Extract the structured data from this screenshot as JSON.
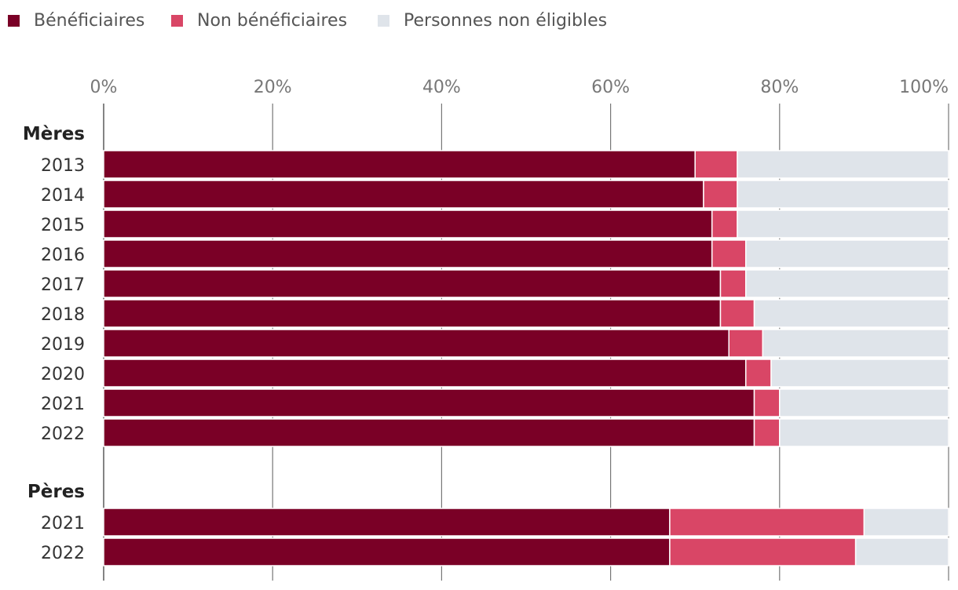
{
  "chart_data": {
    "type": "bar",
    "orientation": "horizontal",
    "stacked": "percent",
    "legend": [
      {
        "name": "Bénéficiaires",
        "color": "#7a0026"
      },
      {
        "name": "Non bénéficiaires",
        "color": "#d94666"
      },
      {
        "name": "Personnes non éligibles",
        "color": "#dfe4ea"
      }
    ],
    "x_ticks": [
      "0%",
      "20%",
      "40%",
      "60%",
      "80%",
      "100%"
    ],
    "xlim": [
      0,
      100
    ],
    "groups": [
      {
        "label": "Mères",
        "rows": [
          {
            "year": "2013",
            "values": [
              70,
              5,
              25
            ]
          },
          {
            "year": "2014",
            "values": [
              71,
              4,
              25
            ]
          },
          {
            "year": "2015",
            "values": [
              72,
              3,
              25
            ]
          },
          {
            "year": "2016",
            "values": [
              72,
              4,
              24
            ]
          },
          {
            "year": "2017",
            "values": [
              73,
              3,
              24
            ]
          },
          {
            "year": "2018",
            "values": [
              73,
              4,
              23
            ]
          },
          {
            "year": "2019",
            "values": [
              74,
              4,
              22
            ]
          },
          {
            "year": "2020",
            "values": [
              76,
              3,
              21
            ]
          },
          {
            "year": "2021",
            "values": [
              77,
              3,
              20
            ]
          },
          {
            "year": "2022",
            "values": [
              77,
              3,
              20
            ]
          }
        ]
      },
      {
        "label": "Pères",
        "rows": [
          {
            "year": "2021",
            "values": [
              67,
              23,
              10
            ]
          },
          {
            "year": "2022",
            "values": [
              67,
              22,
              11
            ]
          }
        ]
      }
    ]
  }
}
